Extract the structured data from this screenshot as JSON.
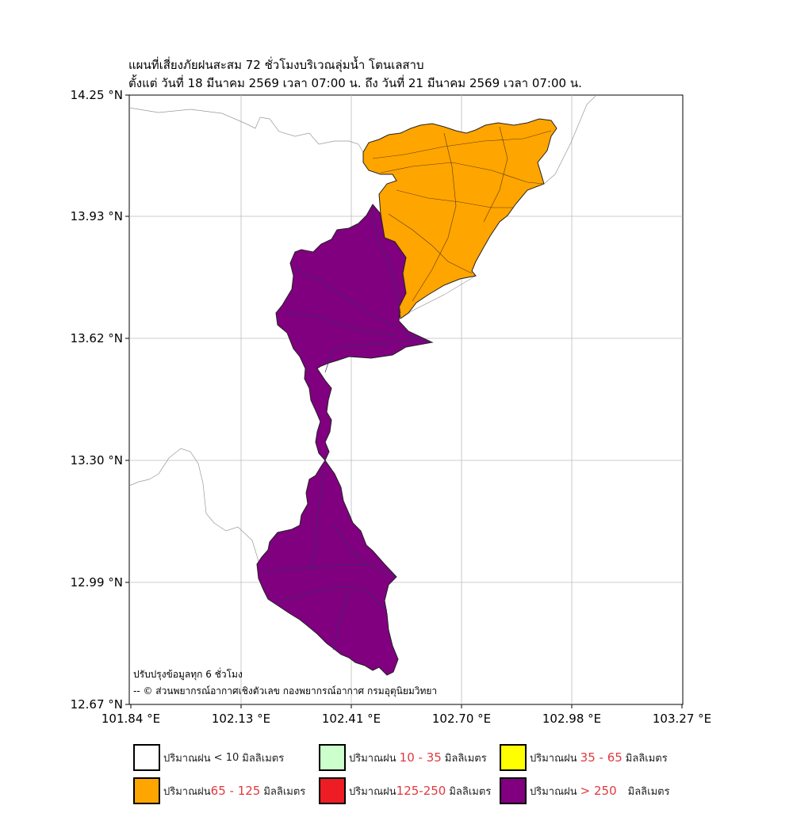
{
  "title": {
    "line1": "แผนที่เสี่ยงภัยฝนสะสม 72 ชั่วโมงบริเวณลุ่มน้ำ โตนเลสาบ",
    "line2": "ตั้งแต่ วันที่ 18 มีนาคม 2569 เวลา 07:00 น. ถึง วันที่ 21 มีนาคม 2569 เวลา 07:00 น."
  },
  "axes": {
    "y_ticks": [
      "14.25 °N",
      "13.93 °N",
      "13.62 °N",
      "13.30 °N",
      "12.99 °N",
      "12.67 °N"
    ],
    "x_ticks": [
      "101.84 °E",
      "102.13 °E",
      "102.41 °E",
      "102.70 °E",
      "102.98 °E",
      "103.27 °E"
    ],
    "lat_range": [
      12.67,
      14.25
    ],
    "lon_range": [
      101.84,
      103.27
    ]
  },
  "notes": {
    "update": "ปรับปรุงข้อมูลทุก 6 ชั่วโมง",
    "credit": "-- © ส่วนพยากรณ์อากาศเชิงตัวเลข กองพยากรณ์อากาศ กรมอุตุนิยมวิทยา"
  },
  "regions": [
    {
      "name": "northeast-sub-basin",
      "rain_class": "65 - 125",
      "color": "#ffa500"
    },
    {
      "name": "central-sub-basin",
      "rain_class": "> 250",
      "color": "#800080"
    },
    {
      "name": "southern-sub-basin",
      "rain_class": "> 250",
      "color": "#800080"
    }
  ],
  "legend": [
    {
      "label": "ปริมาณฝน",
      "range": "< 10",
      "unit": "มิลลิเมตร",
      "color": "#ffffff",
      "range_red": false
    },
    {
      "label": "ปริมาณฝน",
      "range": "10 - 35",
      "unit": "มิลลิเมตร",
      "color": "#ccffcc",
      "range_red": true
    },
    {
      "label": "ปริมาณฝน",
      "range": "35 - 65",
      "unit": "มิลลิเมตร",
      "color": "#ffff00",
      "range_red": true
    },
    {
      "label": "ปริมาณฝน",
      "range": "65 - 125",
      "unit": "มิลลิเมตร",
      "color": "#ffa500",
      "range_red": true
    },
    {
      "label": "ปริมาณฝน",
      "range": "125-250",
      "unit": "มิลลิเมตร",
      "color": "#ee1c25",
      "range_red": true
    },
    {
      "label": "ปริมาณฝน",
      "range": "> 250",
      "unit": "มิลลิเมตร",
      "color": "#800080",
      "range_red": true
    }
  ]
}
